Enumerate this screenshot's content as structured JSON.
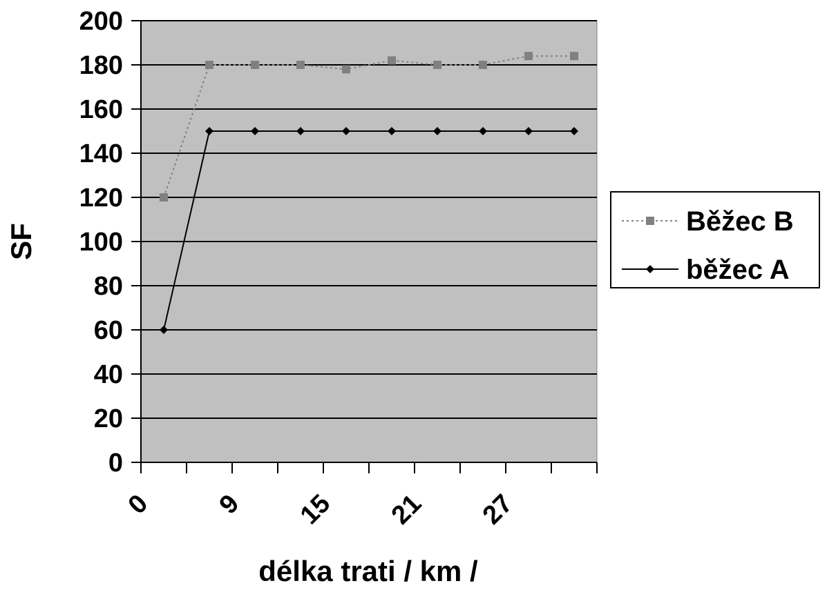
{
  "chart_data": {
    "type": "line",
    "title": "",
    "xlabel": "délka trati / km /",
    "ylabel": "SF",
    "ylim": [
      0,
      200
    ],
    "y_ticks": [
      0,
      20,
      40,
      60,
      80,
      100,
      120,
      140,
      160,
      180,
      200
    ],
    "x_tick_labels": [
      "0",
      "9",
      "15",
      "21",
      "27"
    ],
    "x_range": [
      0,
      30
    ],
    "grid": true,
    "legend_position": "right",
    "series": [
      {
        "name": "Běžec B",
        "style": "dotted",
        "marker": "square",
        "color": "#808080",
        "x": [
          1.5,
          4.5,
          7.5,
          10.5,
          13.5,
          16.5,
          19.5,
          22.5,
          25.5,
          28.5
        ],
        "y": [
          120,
          180,
          180,
          180,
          178,
          182,
          180,
          180,
          184,
          184
        ]
      },
      {
        "name": "běžec A",
        "style": "solid",
        "marker": "diamond",
        "color": "#000000",
        "x": [
          1.5,
          4.5,
          7.5,
          10.5,
          13.5,
          16.5,
          19.5,
          22.5,
          25.5,
          28.5
        ],
        "y": [
          60,
          150,
          150,
          150,
          150,
          150,
          150,
          150,
          150,
          150
        ]
      }
    ]
  }
}
